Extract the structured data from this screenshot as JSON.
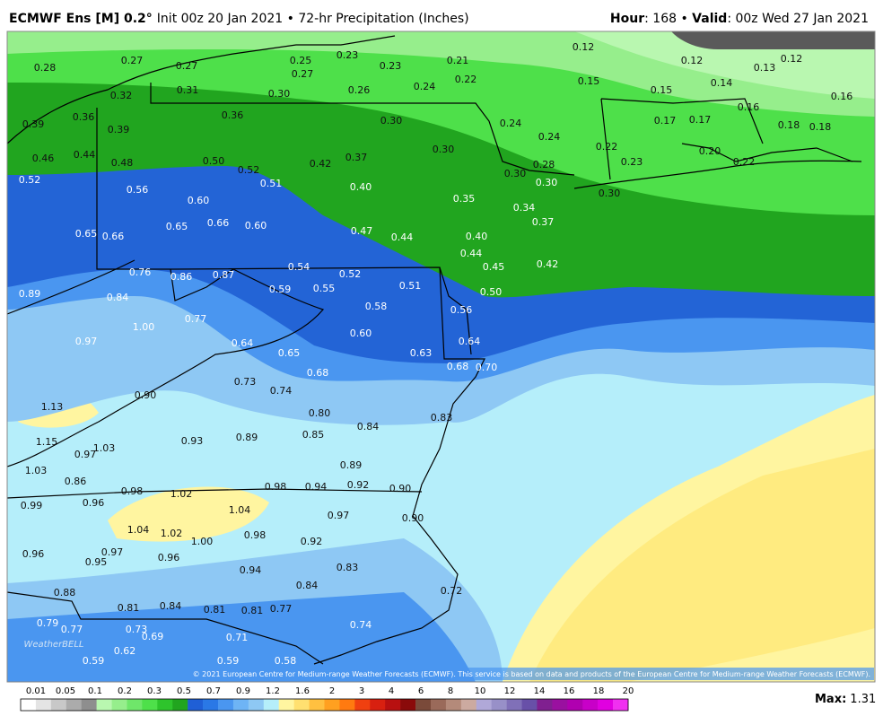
{
  "header": {
    "title_bold": "ECMWF Ens [M] 0.2°",
    "title_rest": "Init 00z 20 Jan 2021 • 72-hr Precipitation (Inches)",
    "hour_key": "Hour",
    "hour_value": ": 168 • ",
    "valid_key": "Valid",
    "valid_value": ": 00z Wed 27 Jan 2021"
  },
  "map_labels": [
    "0.28",
    "0.27",
    "0.27",
    "0.25",
    "0.23",
    "0.27",
    "0.23",
    "0.21",
    "0.12",
    "0.12",
    "0.13",
    "0.12",
    "0.32",
    "0.31",
    "0.30",
    "0.26",
    "0.24",
    "0.22",
    "0.15",
    "0.14",
    "0.15",
    "0.16",
    "0.39",
    "0.36",
    "0.39",
    "0.36",
    "0.30",
    "0.24",
    "0.17",
    "0.17",
    "0.16",
    "0.18",
    "0.18",
    "0.46",
    "0.44",
    "0.48",
    "0.50",
    "0.52",
    "0.42",
    "0.37",
    "0.30",
    "0.24",
    "0.22",
    "0.20",
    "0.23",
    "0.22",
    "0.52",
    "0.56",
    "0.51",
    "0.40",
    "0.30",
    "0.28",
    "0.30",
    "0.30",
    "0.60",
    "0.35",
    "0.34",
    "0.37",
    "0.65",
    "0.66",
    "0.60",
    "0.47",
    "0.44",
    "0.40",
    "0.65",
    "0.66",
    "0.44",
    "0.45",
    "0.42",
    "0.76",
    "0.86",
    "0.87",
    "0.54",
    "0.52",
    "0.59",
    "0.55",
    "0.51",
    "0.50",
    "0.89",
    "0.84",
    "0.58",
    "0.56",
    "0.77",
    "1.00",
    "0.60",
    "0.97",
    "0.64",
    "0.64",
    "0.65",
    "0.63",
    "0.68",
    "0.68",
    "0.70",
    "0.73",
    "0.74",
    "0.90",
    "1.13",
    "0.80",
    "0.83",
    "0.84",
    "0.85",
    "0.93",
    "0.89",
    "1.15",
    "0.97",
    "1.03",
    "1.03",
    "0.89",
    "0.86",
    "0.98",
    "1.02",
    "0.98",
    "0.94",
    "0.92",
    "0.90",
    "0.99",
    "0.96",
    "1.04",
    "0.97",
    "0.90",
    "1.04",
    "1.02",
    "1.00",
    "0.98",
    "0.92",
    "0.96",
    "0.97",
    "0.95",
    "0.96",
    "0.94",
    "0.83",
    "0.84",
    "0.88",
    "0.72",
    "0.81",
    "0.84",
    "0.81",
    "0.81",
    "0.77",
    "0.79",
    "0.77",
    "0.73",
    "0.69",
    "0.71",
    "0.74",
    "0.62",
    "0.59",
    "0.59",
    "0.58"
  ],
  "logo": "WeatherBELL",
  "copyright": "© 2021 European Centre for Medium-range Weather Forecasts (ECMWF). This service is based on data and products of the European Centre for Medium-range Weather Forecasts (ECMWF).",
  "colorbar": {
    "labels": [
      "0.01",
      "0.05",
      "0.1",
      "0.2",
      "0.3",
      "0.5",
      "0.7",
      "0.9",
      "1.2",
      "1.6",
      "2",
      "3",
      "4",
      "6",
      "8",
      "10",
      "12",
      "14",
      "16",
      "18",
      "20"
    ],
    "colors": [
      "#ffffff",
      "#e4e4e4",
      "#c8c8c8",
      "#ababab",
      "#8e8e8e",
      "#b9f7b0",
      "#96ee8c",
      "#6fe66a",
      "#4ee04a",
      "#2ec42c",
      "#21a51f",
      "#1f5fd6",
      "#2a78e6",
      "#4a96f0",
      "#6eb4f5",
      "#8ec8f4",
      "#b5eefa",
      "#fff5a0",
      "#ffe070",
      "#ffc040",
      "#ffa020",
      "#ff7a10",
      "#f04010",
      "#d82010",
      "#b81010",
      "#8a0a0a",
      "#7a4a3a",
      "#9a6a5a",
      "#b48a7a",
      "#ccaaa0",
      "#b0a8d8",
      "#9890c8",
      "#8070b8",
      "#6850a8",
      "#802090",
      "#9a10a0",
      "#b000b0",
      "#c800c8",
      "#e000e0",
      "#f030f0"
    ]
  },
  "max": {
    "key": "Max:",
    "value": "1.31"
  }
}
